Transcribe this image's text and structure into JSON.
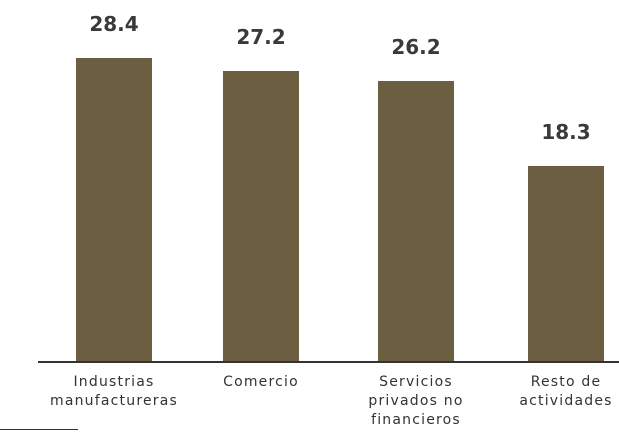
{
  "chart_data": {
    "type": "bar",
    "categories": [
      "Industrias manufactureras",
      "Comercio",
      "Servicios privados no financieros",
      "Resto de actividades"
    ],
    "values": [
      28.4,
      27.2,
      26.2,
      18.3
    ],
    "color": "#6b5e41"
  }
}
